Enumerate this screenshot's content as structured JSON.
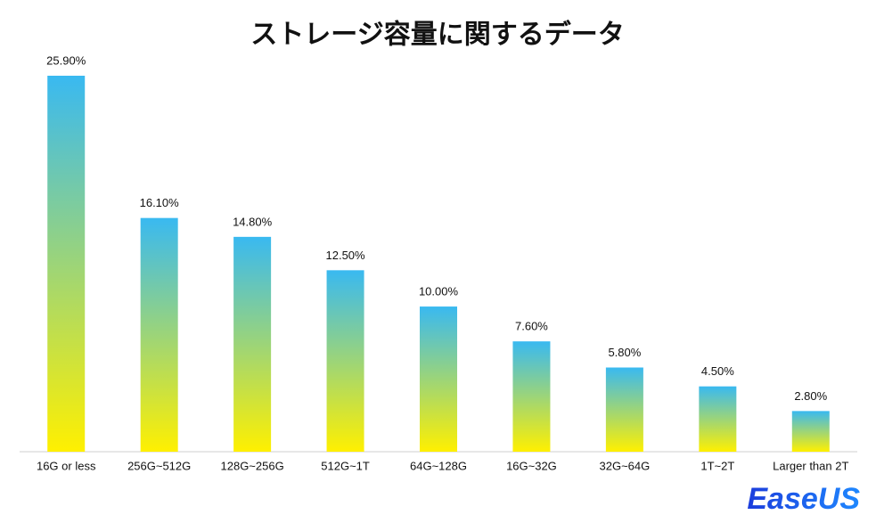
{
  "chart_data": {
    "type": "bar",
    "title": "ストレージ容量に関するデータ",
    "categories": [
      "16G or less",
      "256G~512G",
      "128G~256G",
      "512G~1T",
      "64G~128G",
      "16G~32G",
      "32G~64G",
      "1T~2T",
      "Larger than 2T"
    ],
    "values": [
      25.9,
      16.1,
      14.8,
      12.5,
      10.0,
      7.6,
      5.8,
      4.5,
      2.8
    ],
    "value_labels": [
      "25.90%",
      "16.10%",
      "14.80%",
      "12.50%",
      "10.00%",
      "7.60%",
      "5.80%",
      "4.50%",
      "2.80%"
    ],
    "gradient": [
      "#39b9f1",
      "#fff000"
    ],
    "logo": "EaseUS"
  }
}
